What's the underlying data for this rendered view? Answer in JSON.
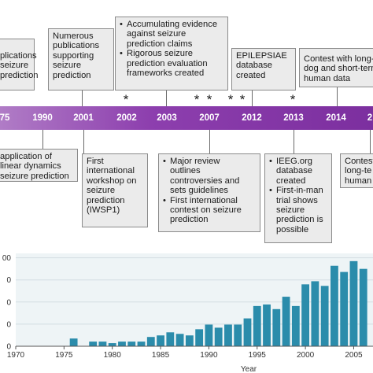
{
  "top_boxes": [
    {
      "lines": [
        "plications",
        "seizure",
        "prediction"
      ]
    },
    {
      "lines": [
        "Numerous",
        "publications",
        "supporting",
        "seizure",
        "prediction"
      ]
    },
    {
      "bullets": [
        [
          "Accumulating evidence",
          "against seizure",
          "prediction claims"
        ],
        [
          "Rigorous seizure",
          "prediction evaluation",
          "frameworks created"
        ]
      ]
    },
    {
      "lines": [
        "EPILEPSIAE",
        "database",
        "created"
      ]
    },
    {
      "lines": [
        "Contest with long-",
        "dog and short-term",
        "human data"
      ]
    }
  ],
  "bottom_boxes": [
    {
      "lines": [
        "application of",
        "linear dynamics",
        "seizure prediction"
      ]
    },
    {
      "lines": [
        "First",
        "international",
        "workshop on",
        "seizure",
        "prediction",
        "(IWSP1)"
      ]
    },
    {
      "bullets": [
        [
          "Major review",
          "outlines",
          "controversies and",
          "sets guidelines"
        ],
        [
          "First international",
          "contest on seizure",
          "prediction"
        ]
      ]
    },
    {
      "bullets": [
        [
          "IEEG.org",
          "database",
          "created"
        ],
        [
          "First-in-man",
          "trial shows",
          "seizure",
          "prediction is",
          "possible"
        ]
      ]
    },
    {
      "lines": [
        "Contest",
        "long-te",
        "human"
      ]
    }
  ],
  "timeline": {
    "years": [
      "75",
      "1990",
      "2001",
      "2002",
      "2003",
      "2007",
      "2012",
      "2013",
      "2014",
      "2"
    ],
    "star_glyph": "*",
    "bar_color": "#8d3fae"
  },
  "chart_data": {
    "type": "bar",
    "x": [
      1975,
      1976,
      1977,
      1978,
      1979,
      1980,
      1981,
      1982,
      1983,
      1984,
      1985,
      1986,
      1987,
      1988,
      1989,
      1990,
      1991,
      1992,
      1993,
      1994,
      1995,
      1996,
      1997,
      1998,
      1999,
      2000,
      2001,
      2002,
      2003,
      2004,
      2005,
      2006
    ],
    "values": [
      0,
      50,
      0,
      30,
      30,
      20,
      30,
      30,
      30,
      60,
      70,
      90,
      80,
      70,
      110,
      140,
      120,
      140,
      140,
      180,
      260,
      270,
      240,
      320,
      260,
      400,
      420,
      390,
      520,
      480,
      550,
      500
    ],
    "xlabel": "Year",
    "ylabel": "",
    "xlim": [
      1970,
      2007
    ],
    "ylim": [
      0,
      600
    ],
    "xticks": [
      "1970",
      "1975",
      "1980",
      "1985",
      "1990",
      "1995",
      "2000",
      "2005"
    ],
    "yticks": [
      "0",
      "0",
      "0",
      "0",
      "00"
    ],
    "bar_color": "#2b8cab",
    "background": "#eef4f6",
    "grid": true
  }
}
